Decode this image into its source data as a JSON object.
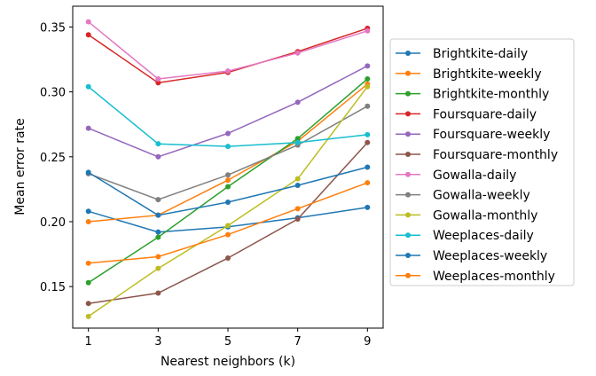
{
  "chart_data": {
    "type": "line",
    "xlabel": "Nearest neighbors (k)",
    "ylabel": "Mean error rate",
    "x": [
      1,
      3,
      5,
      7,
      9
    ],
    "xlim": [
      0.55,
      9.45
    ],
    "ylim": [
      0.118,
      0.366
    ],
    "xticks": [
      "1",
      "3",
      "5",
      "7",
      "9"
    ],
    "yticks": [
      0.15,
      0.2,
      0.25,
      0.3,
      0.35
    ],
    "ytick_labels": [
      "0.15",
      "0.20",
      "0.25",
      "0.30",
      "0.35"
    ],
    "legend_position": "right",
    "grid": false,
    "series": [
      {
        "name": "Brightkite-daily",
        "color": "#1f77b4",
        "values": [
          0.208,
          0.192,
          0.196,
          0.203,
          0.211
        ]
      },
      {
        "name": "Brightkite-weekly",
        "color": "#ff7f0e",
        "values": [
          0.2,
          0.205,
          0.232,
          0.262,
          0.306
        ]
      },
      {
        "name": "Brightkite-monthly",
        "color": "#2ca02c",
        "values": [
          0.153,
          0.188,
          0.227,
          0.264,
          0.31
        ]
      },
      {
        "name": "Foursquare-daily",
        "color": "#d62728",
        "values": [
          0.344,
          0.307,
          0.315,
          0.331,
          0.349
        ]
      },
      {
        "name": "Foursquare-weekly",
        "color": "#9467bd",
        "values": [
          0.272,
          0.25,
          0.268,
          0.292,
          0.32
        ]
      },
      {
        "name": "Foursquare-monthly",
        "color": "#8c564b",
        "values": [
          0.137,
          0.145,
          0.172,
          0.202,
          0.261
        ]
      },
      {
        "name": "Gowalla-daily",
        "color": "#e377c2",
        "values": [
          0.354,
          0.31,
          0.316,
          0.33,
          0.347
        ]
      },
      {
        "name": "Gowalla-weekly",
        "color": "#7f7f7f",
        "values": [
          0.237,
          0.217,
          0.236,
          0.259,
          0.289
        ]
      },
      {
        "name": "Gowalla-monthly",
        "color": "#bcbd22",
        "values": [
          0.127,
          0.164,
          0.197,
          0.233,
          0.304
        ]
      },
      {
        "name": "Weeplaces-daily",
        "color": "#17becf",
        "values": [
          0.304,
          0.26,
          0.258,
          0.261,
          0.267
        ]
      },
      {
        "name": "Weeplaces-weekly",
        "color": "#1f77b4",
        "values": [
          0.238,
          0.205,
          0.215,
          0.228,
          0.242
        ]
      },
      {
        "name": "Weeplaces-monthly",
        "color": "#ff7f0e",
        "values": [
          0.168,
          0.173,
          0.19,
          0.21,
          0.23
        ]
      }
    ]
  }
}
